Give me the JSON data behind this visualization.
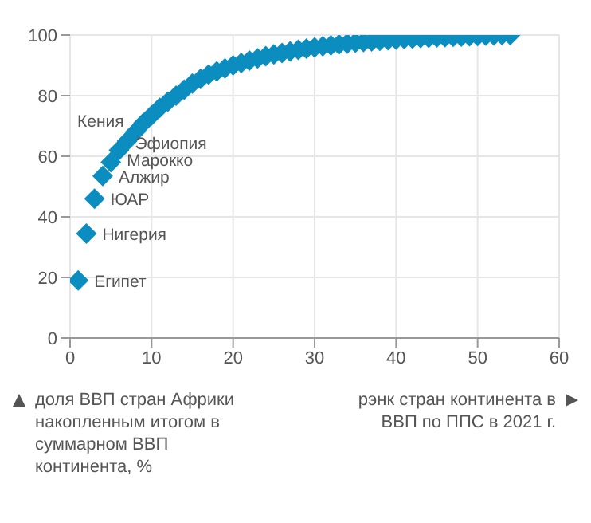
{
  "chart_data": {
    "type": "scatter",
    "xlabel": "рэнк стран континента в ВВП по ППС в 2021 г.",
    "ylabel": "доля ВВП стран Африки накопленным итогом в суммарном ВВП континента, %",
    "x": [
      1,
      2,
      3,
      4,
      5,
      6,
      7,
      8,
      9,
      10,
      11,
      12,
      13,
      14,
      15,
      16,
      17,
      18,
      19,
      20,
      21,
      22,
      23,
      24,
      25,
      26,
      27,
      28,
      29,
      30,
      31,
      32,
      33,
      34,
      35,
      36,
      37,
      38,
      39,
      40,
      41,
      42,
      43,
      44,
      45,
      46,
      47,
      48,
      49,
      50,
      51,
      52,
      53,
      54
    ],
    "series": [
      {
        "color": "#0b8dbf",
        "values": [
          19,
          34.5,
          46,
          53.5,
          58,
          62,
          65,
          68,
          71,
          73.5,
          76,
          78,
          80,
          82,
          84,
          85.5,
          87,
          88,
          89,
          90,
          90.8,
          91.6,
          92.3,
          93,
          93.6,
          94.1,
          94.6,
          95.1,
          95.5,
          95.9,
          96.3,
          96.6,
          96.9,
          97.2,
          97.5,
          97.7,
          97.9,
          98.1,
          98.3,
          98.5,
          98.7,
          98.8,
          99,
          99.1,
          99.2,
          99.3,
          99.4,
          99.5,
          99.6,
          99.7,
          99.8,
          99.9,
          100,
          100
        ]
      }
    ],
    "annotations": [
      {
        "text": "Египет",
        "x": 1,
        "y": 19
      },
      {
        "text": "Нигерия",
        "x": 2,
        "y": 34.5
      },
      {
        "text": "ЮАР",
        "x": 3,
        "y": 46
      },
      {
        "text": "Алжир",
        "x": 4,
        "y": 53.5
      },
      {
        "text": "Марокко",
        "x": 5,
        "y": 58
      },
      {
        "text": "Эфиопия",
        "x": 6,
        "y": 62
      },
      {
        "text": "Кения",
        "x": 7,
        "y": 65
      }
    ],
    "xlim": [
      0,
      60
    ],
    "xticks": [
      0,
      10,
      20,
      30,
      40,
      50,
      60
    ],
    "ylim": [
      0,
      100
    ],
    "yticks": [
      0,
      20,
      40,
      60,
      80,
      100
    ],
    "grid": true,
    "marker": "diamond"
  }
}
